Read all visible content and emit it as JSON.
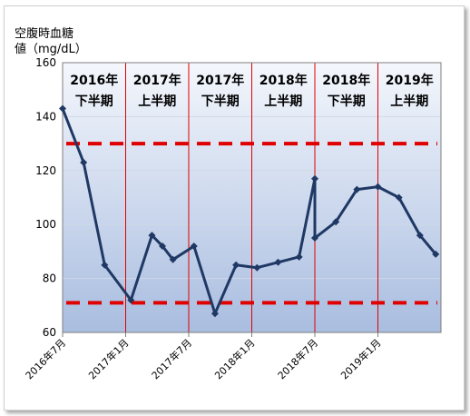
{
  "chart_data": {
    "type": "line",
    "ylabel_lines": [
      "空腹時血糖",
      "値（mg/dL）"
    ],
    "ylim": [
      60,
      160
    ],
    "yticks": [
      60,
      80,
      100,
      120,
      140,
      160
    ],
    "x_range": [
      0,
      36
    ],
    "xticks": [
      {
        "pos": 0,
        "label": "2016年7月"
      },
      {
        "pos": 6,
        "label": "2017年1月"
      },
      {
        "pos": 12,
        "label": "2017年7月"
      },
      {
        "pos": 18,
        "label": "2018年1月"
      },
      {
        "pos": 24,
        "label": "2018年7月"
      },
      {
        "pos": 30,
        "label": "2019年1月"
      }
    ],
    "periods": [
      {
        "start": 0,
        "end": 6,
        "line1": "2016年",
        "line2": "下半期"
      },
      {
        "start": 6,
        "end": 12,
        "line1": "2017年",
        "line2": "上半期"
      },
      {
        "start": 12,
        "end": 18,
        "line1": "2017年",
        "line2": "下半期"
      },
      {
        "start": 18,
        "end": 24,
        "line1": "2018年",
        "line2": "上半期"
      },
      {
        "start": 24,
        "end": 30,
        "line1": "2018年",
        "line2": "下半期"
      },
      {
        "start": 30,
        "end": 36,
        "line1": "2019年",
        "line2": "上半期"
      }
    ],
    "reference_lines": [
      130,
      71
    ],
    "series": [
      {
        "x": [
          0,
          2,
          4,
          6.5,
          8.5,
          9.5,
          10.5,
          12.5,
          14.5,
          16.5,
          18.5,
          20.5,
          22.5,
          24,
          24,
          26,
          28,
          30,
          32,
          34,
          35.5
        ],
        "values": [
          143,
          123,
          85,
          72,
          96,
          92,
          87,
          92,
          67,
          85,
          84,
          86,
          88,
          117,
          95,
          101,
          113,
          114,
          110,
          96,
          89
        ]
      }
    ],
    "colors": {
      "line": "#1f3864",
      "reference": "#e00000",
      "divider": "#e00000",
      "bg_top": "#f4f7fc",
      "bg_bottom": "#a9bde0",
      "grid": "#d0d8e8"
    }
  }
}
